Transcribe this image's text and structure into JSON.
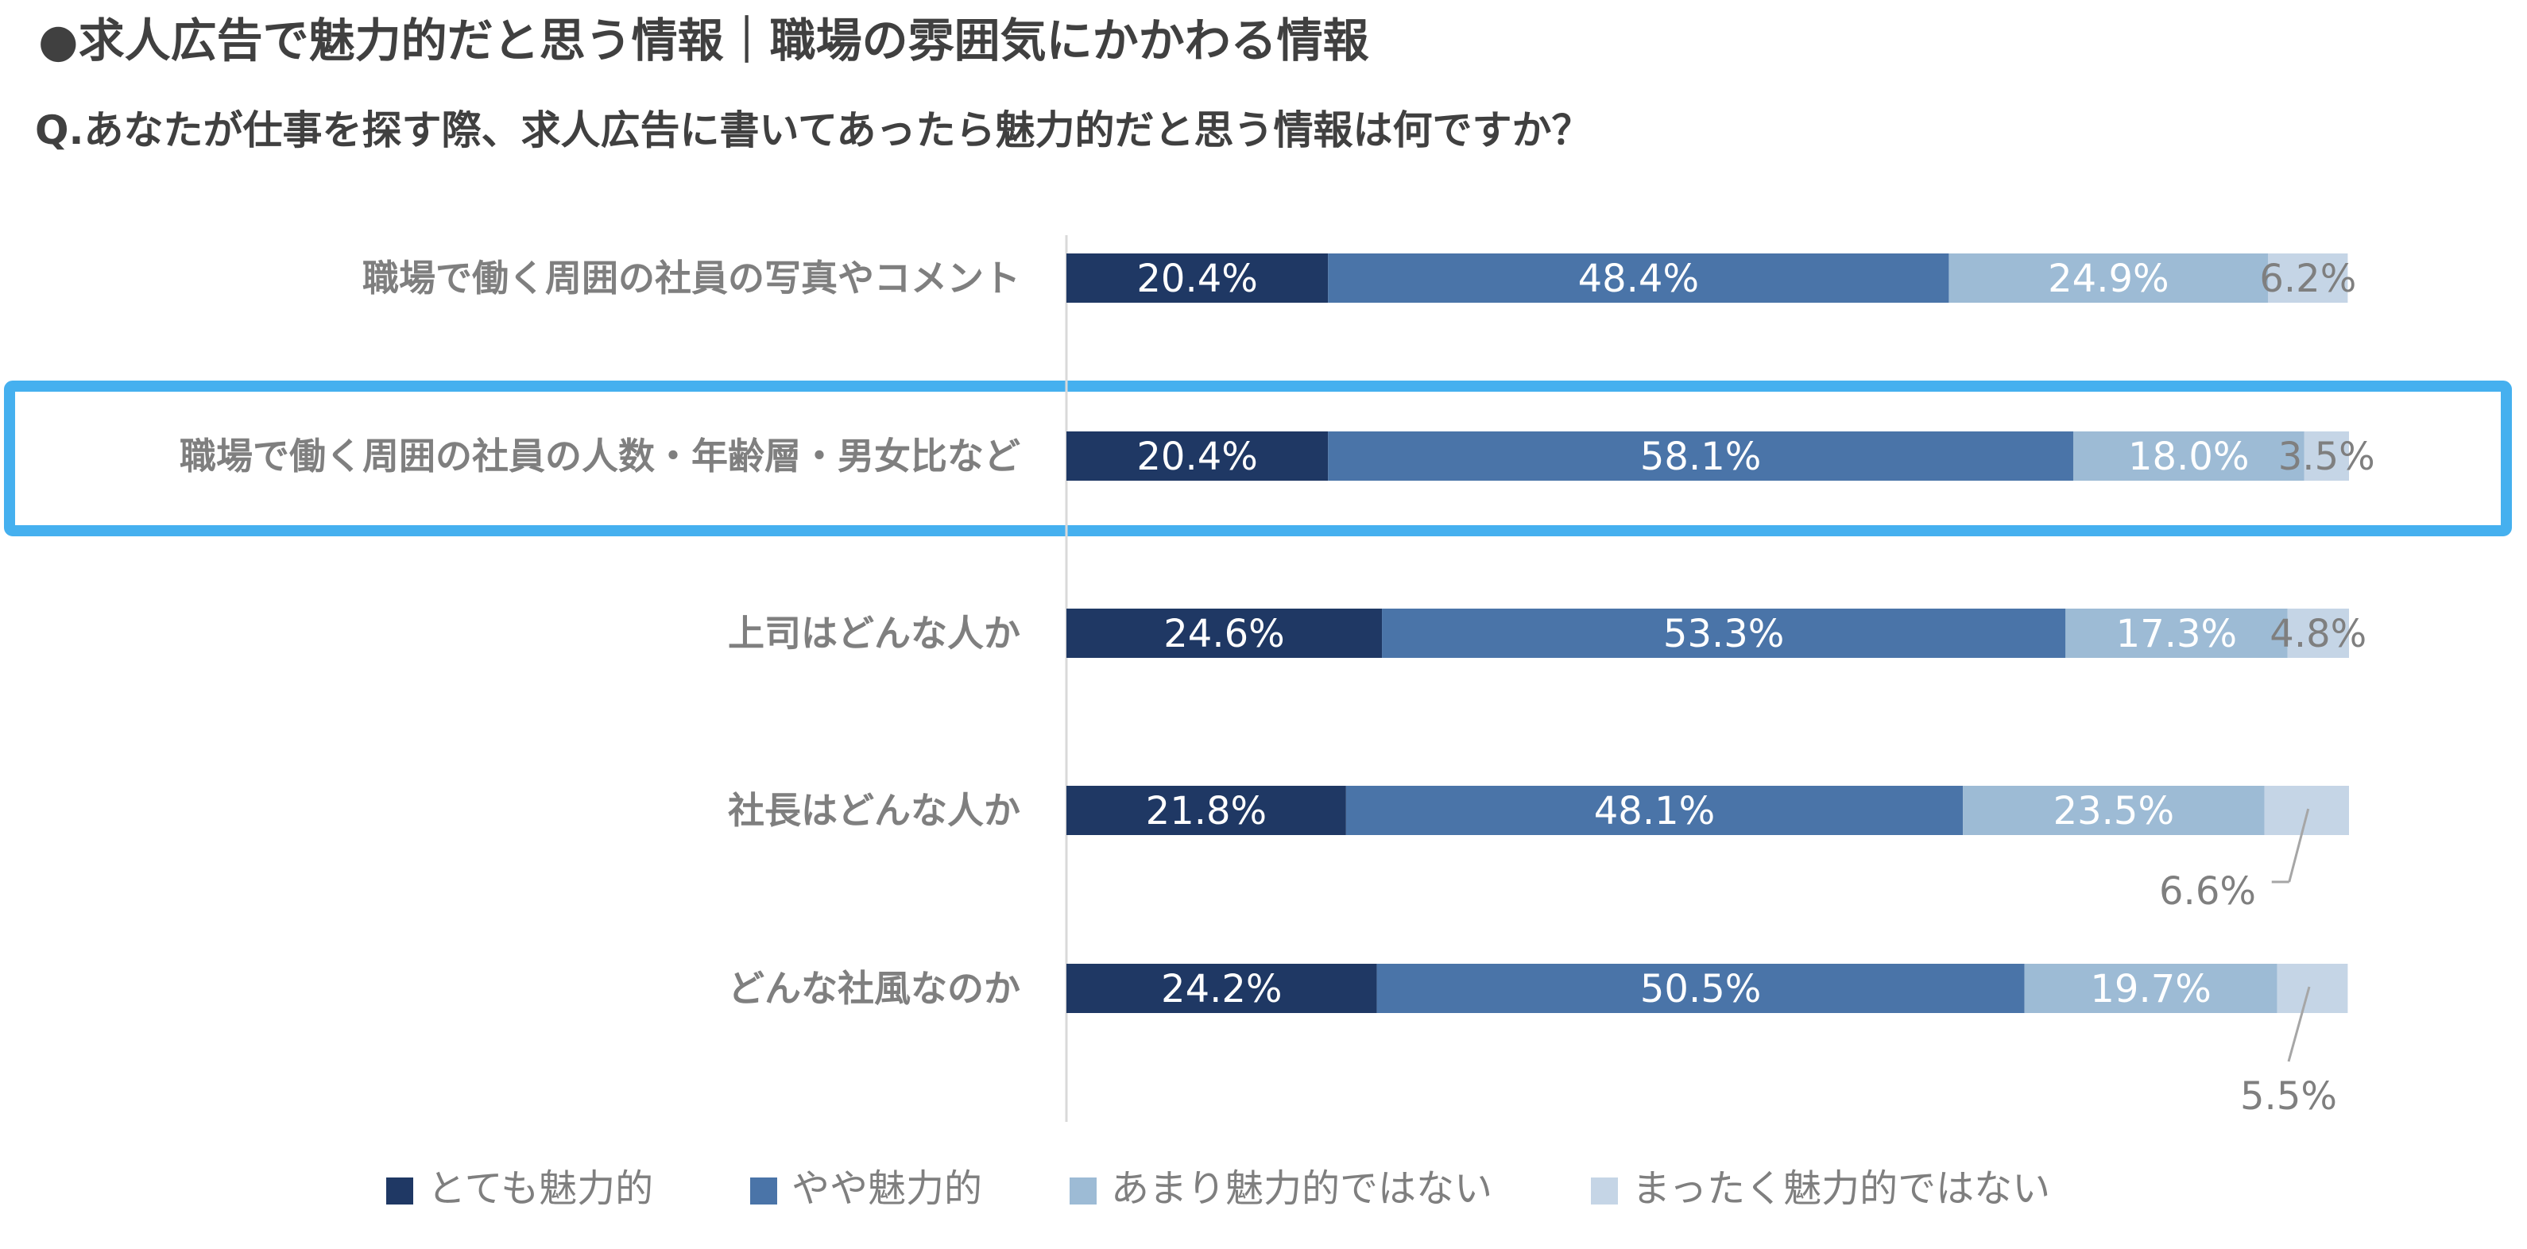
{
  "title": "●求人広告で魅力的だと思う情報｜職場の雰囲気にかかわる情報",
  "question": "Q.あなたが仕事を探す際、求人広告に書いてあったら魅力的だと思う情報は何ですか？",
  "colors": {
    "series": [
      "#1f3864",
      "#4a74a8",
      "#9dbbd5",
      "#c5d5e6"
    ],
    "highlight": "#45b0ef",
    "category_text": "#7f7f7f",
    "axis": "#d9d9d9"
  },
  "chart_data": {
    "type": "bar",
    "orientation": "horizontal",
    "stacked": true,
    "categories": [
      "職場で働く周囲の社員の写真やコメント",
      "職場で働く周囲の社員の人数・年齢層・男女比など",
      "上司はどんな人か",
      "社長はどんな人か",
      "どんな社風なのか"
    ],
    "series": [
      {
        "name": "とても魅力的",
        "values": [
          20.4,
          20.4,
          24.6,
          21.8,
          24.2
        ]
      },
      {
        "name": "やや魅力的",
        "values": [
          48.4,
          58.1,
          53.3,
          48.1,
          50.5
        ]
      },
      {
        "name": "あまり魅力的ではない",
        "values": [
          24.9,
          18.0,
          17.3,
          23.5,
          19.7
        ]
      },
      {
        "name": "まったく魅力的ではない",
        "values": [
          6.2,
          3.5,
          4.8,
          6.6,
          5.5
        ]
      }
    ],
    "labels": [
      [
        "20.4%",
        "48.4%",
        "24.9%",
        "6.2%"
      ],
      [
        "20.4%",
        "58.1%",
        "18.0%",
        "3.5%"
      ],
      [
        "24.6%",
        "53.3%",
        "17.3%",
        "4.8%"
      ],
      [
        "21.8%",
        "48.1%",
        "23.5%",
        "6.6%"
      ],
      [
        "24.2%",
        "50.5%",
        "19.7%",
        "5.5%"
      ]
    ],
    "highlighted_category": "職場で働く周囲の社員の人数・年齢層・男女比など",
    "xlim": [
      0,
      100
    ],
    "legend_position": "bottom"
  }
}
